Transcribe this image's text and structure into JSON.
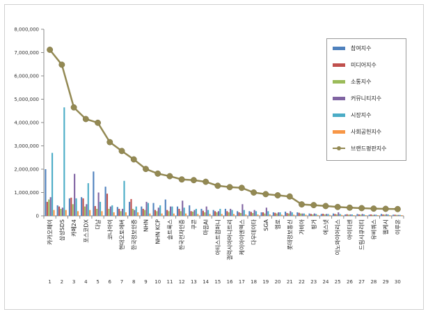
{
  "chart_data": {
    "type": "bar",
    "y_ticks": [
      "0",
      "1,000,000",
      "2,000,000",
      "3,000,000",
      "4,000,000",
      "5,000,000",
      "6,000,000",
      "7,000,000",
      "8,000,000"
    ],
    "ylim": [
      0,
      8000000
    ],
    "grid": false,
    "legend_position": "top-right",
    "categories": [
      "카카오페이",
      "삼성SDS",
      "카페24",
      "포스코DX",
      "다날",
      "코나아이",
      "현대오토에버",
      "한국정보인증",
      "NHN",
      "NHN KCP",
      "솔트룩스",
      "한국전자인증",
      "쿠콘",
      "마음AI",
      "아티스트컴퍼니",
      "갤럭시아머니트리",
      "케이아이엔엑스",
      "다우데이타",
      "SGA",
      "엠로",
      "롯데정보통신",
      "가비아",
      "핑거",
      "에스넷",
      "이노와이어리스",
      "아이티센",
      "드림시큐리티",
      "유비쿼스",
      "웹케시",
      "이루온"
    ],
    "rank_labels": [
      "1",
      "2",
      "3",
      "4",
      "5",
      "6",
      "7",
      "8",
      "9",
      "10",
      "11",
      "12",
      "13",
      "14",
      "15",
      "16",
      "17",
      "18",
      "19",
      "20",
      "21",
      "22",
      "23",
      "24",
      "25",
      "26",
      "27",
      "28",
      "29",
      "30"
    ],
    "series": [
      {
        "name": "참여지수",
        "color": "#4f81bd",
        "values": [
          2000000,
          450000,
          750000,
          800000,
          1900000,
          1250000,
          380000,
          600000,
          400000,
          550000,
          700000,
          400000,
          450000,
          300000,
          250000,
          300000,
          200000,
          200000,
          150000,
          150000,
          180000,
          150000,
          100000,
          80000,
          100000,
          60000,
          80000,
          50000,
          80000,
          50000
        ]
      },
      {
        "name": "미디어지수",
        "color": "#c0504d",
        "values": [
          600000,
          400000,
          780000,
          750000,
          420000,
          950000,
          300000,
          720000,
          300000,
          250000,
          250000,
          300000,
          200000,
          220000,
          200000,
          200000,
          150000,
          170000,
          150000,
          130000,
          120000,
          130000,
          80000,
          90000,
          80000,
          70000,
          60000,
          60000,
          60000,
          50000
        ]
      },
      {
        "name": "소통지수",
        "color": "#9bbb59",
        "values": [
          700000,
          300000,
          500000,
          400000,
          300000,
          300000,
          200000,
          300000,
          250000,
          200000,
          200000,
          200000,
          180000,
          150000,
          150000,
          150000,
          120000,
          120000,
          100000,
          100000,
          100000,
          100000,
          60000,
          60000,
          60000,
          50000,
          50000,
          40000,
          50000,
          40000
        ]
      },
      {
        "name": "커뮤니티지수",
        "color": "#8064a2",
        "values": [
          800000,
          350000,
          1800000,
          500000,
          1000000,
          400000,
          300000,
          250000,
          600000,
          350000,
          400000,
          650000,
          250000,
          400000,
          200000,
          300000,
          500000,
          250000,
          350000,
          150000,
          200000,
          100000,
          100000,
          80000,
          150000,
          60000,
          80000,
          50000,
          70000,
          40000
        ]
      },
      {
        "name": "시장지수",
        "color": "#4bacc6",
        "values": [
          2700000,
          4650000,
          750000,
          1400000,
          600000,
          450000,
          1500000,
          400000,
          550000,
          450000,
          400000,
          350000,
          300000,
          250000,
          300000,
          250000,
          250000,
          200000,
          200000,
          150000,
          150000,
          100000,
          80000,
          80000,
          80000,
          60000,
          60000,
          50000,
          60000,
          40000
        ]
      },
      {
        "name": "사회공헌지수",
        "color": "#f79646",
        "values": [
          250000,
          250000,
          200000,
          250000,
          200000,
          150000,
          150000,
          150000,
          100000,
          100000,
          100000,
          100000,
          80000,
          80000,
          80000,
          80000,
          60000,
          60000,
          60000,
          50000,
          50000,
          50000,
          40000,
          40000,
          40000,
          30000,
          30000,
          30000,
          30000,
          30000
        ]
      }
    ],
    "line_series": {
      "name": "브랜드평판지수",
      "color": "#938953",
      "values": [
        7120000,
        6480000,
        4650000,
        4150000,
        3990000,
        3160000,
        2780000,
        2420000,
        2010000,
        1810000,
        1700000,
        1560000,
        1530000,
        1460000,
        1290000,
        1230000,
        1200000,
        1000000,
        930000,
        880000,
        830000,
        490000,
        460000,
        420000,
        380000,
        350000,
        330000,
        310000,
        300000,
        290000
      ]
    }
  }
}
